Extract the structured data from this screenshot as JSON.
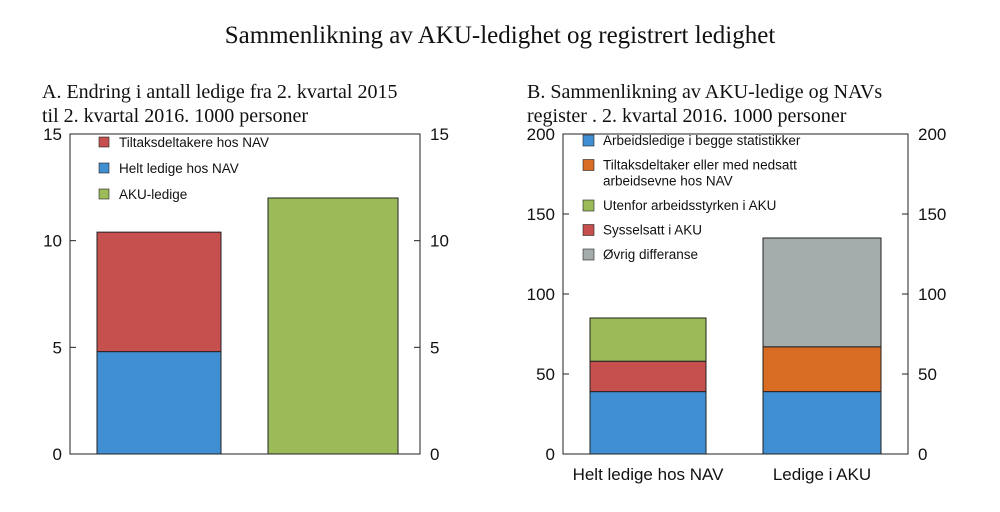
{
  "title": "Sammenlikning av AKU-ledighet og registrert ledighet",
  "chart_data": [
    {
      "type": "bar",
      "stacked": true,
      "title_lines": [
        "A.  Endring i antall ledige fra 2. kvartal 2015",
        "til 2. kvartal 2016. 1000 personer"
      ],
      "categories": [
        "",
        ""
      ],
      "ylim": [
        0,
        15
      ],
      "yticks": [
        "0",
        "5",
        "10",
        "15"
      ],
      "ytick_values": [
        0,
        5,
        10,
        15
      ],
      "grid": false,
      "legend_position": "top-left",
      "series": [
        {
          "name": "Helt ledige hos NAV",
          "color": "#3f8fd2",
          "values": [
            4.8,
            0
          ]
        },
        {
          "name": "Tiltaksdeltakere hos NAV",
          "color": "#c6504e",
          "values": [
            5.6,
            0
          ]
        },
        {
          "name": "AKU-ledige",
          "color": "#9bbb59",
          "values": [
            0,
            12.0
          ]
        }
      ],
      "legend_order": [
        "Tiltaksdeltakere hos NAV",
        "Helt ledige hos NAV",
        "AKU-ledige"
      ]
    },
    {
      "type": "bar",
      "stacked": true,
      "title_lines": [
        "B.  Sammenlikning  av AKU-ledige og  NAVs",
        "register . 2. kvartal 2016. 1000 personer"
      ],
      "categories": [
        "Helt ledige hos NAV",
        "Ledige i AKU"
      ],
      "ylim": [
        0,
        200
      ],
      "yticks": [
        "0",
        "50",
        "100",
        "150",
        "200"
      ],
      "ytick_values": [
        0,
        50,
        100,
        150,
        200
      ],
      "grid": false,
      "legend_position": "top-left",
      "series": [
        {
          "name": "Arbeidsledige i begge statistikker",
          "color": "#3f8fd2",
          "values": [
            39,
            39
          ]
        },
        {
          "name": "Sysselsatt i AKU",
          "color": "#c6504e",
          "values": [
            19,
            0
          ]
        },
        {
          "name": "Utenfor arbeidsstyrken i AKU",
          "color": "#9bbb59",
          "values": [
            27,
            0
          ]
        },
        {
          "name": "Tiltaksdeltaker eller med nedsatt arbeidsevne hos NAV",
          "color": "#d86c23",
          "values": [
            0,
            28
          ]
        },
        {
          "name": "Øvrig differanse",
          "color": "#a5acac",
          "values": [
            0,
            68
          ]
        }
      ],
      "legend_order": [
        [
          "Arbeidsledige i begge statistikker"
        ],
        [
          "Tiltaksdeltaker eller med nedsatt",
          "arbeidsevne hos NAV"
        ],
        [
          "Utenfor arbeidsstyrken i AKU"
        ],
        [
          "Sysselsatt i AKU"
        ],
        [
          "Øvrig differanse"
        ]
      ]
    }
  ]
}
